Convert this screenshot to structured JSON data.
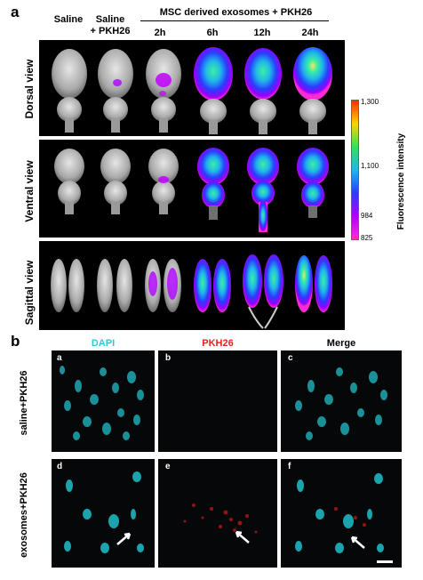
{
  "panel_a": {
    "letter": "a",
    "headers": {
      "saline": "Saline",
      "saline_pkh_line1": "Saline",
      "saline_pkh_line2": "+ PKH26",
      "msc_group": "MSC derived exosomes + PKH26",
      "times": [
        "2h",
        "6h",
        "12h",
        "24h"
      ]
    },
    "rows": [
      "Dorsal view",
      "Ventral view",
      "Sagittal view"
    ],
    "colorbar": {
      "title": "Fluorescence intensity",
      "ticks": [
        "1,300",
        "1,100",
        "984",
        "825"
      ],
      "colors": [
        "#ff2a00",
        "#ffd400",
        "#34e05a",
        "#1fb8e8",
        "#2a3cff",
        "#b000ff",
        "#ff2bd2"
      ]
    }
  },
  "panel_b": {
    "letter": "b",
    "channels": [
      {
        "label": "DAPI",
        "color": "#2fc6d6"
      },
      {
        "label": "PKH26",
        "color": "#e4231f"
      },
      {
        "label": "Merge",
        "color": "#000000"
      }
    ],
    "rows": [
      "saline+PKH26",
      "exosomes+PKH26"
    ],
    "sub_labels": [
      "a",
      "b",
      "c",
      "d",
      "e",
      "f"
    ]
  }
}
